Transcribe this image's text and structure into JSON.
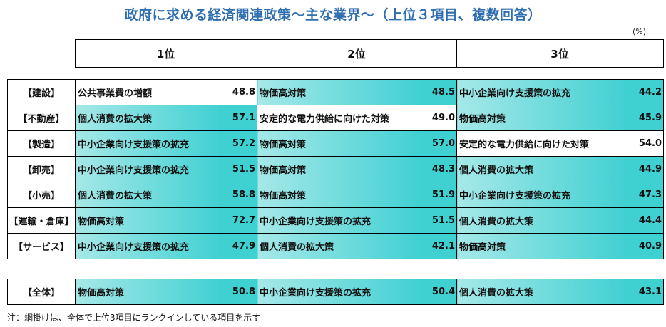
{
  "title": "政府に求める経済関連政策〜主な業界〜（上位３項目、複数回答）",
  "unit": "(%)",
  "headers": [
    "1位",
    "2位",
    "3位"
  ],
  "highlight_color": "#3fd0d2",
  "rows": [
    {
      "cat": "【建設】",
      "r1": {
        "item": "公共事業費の増額",
        "value": "48.8",
        "hl": false
      },
      "r2": {
        "item": "物価高対策",
        "value": "48.5",
        "hl": true
      },
      "r3": {
        "item": "中小企業向け支援策の拡充",
        "value": "44.2",
        "hl": true
      }
    },
    {
      "cat": "【不動産】",
      "r1": {
        "item": "個人消費の拡大策",
        "value": "57.1",
        "hl": true
      },
      "r2": {
        "item": "安定的な電力供給に向けた対策",
        "value": "49.0",
        "hl": false
      },
      "r3": {
        "item": "物価高対策",
        "value": "45.9",
        "hl": true
      }
    },
    {
      "cat": "【製造】",
      "r1": {
        "item": "中小企業向け支援策の拡充",
        "value": "57.2",
        "hl": true
      },
      "r2": {
        "item": "物価高対策",
        "value": "57.0",
        "hl": true
      },
      "r3": {
        "item": "安定的な電力供給に向けた対策",
        "value": "54.0",
        "hl": false
      }
    },
    {
      "cat": "【卸売】",
      "r1": {
        "item": "中小企業向け支援策の拡充",
        "value": "51.5",
        "hl": true
      },
      "r2": {
        "item": "物価高対策",
        "value": "48.3",
        "hl": true
      },
      "r3": {
        "item": "個人消費の拡大策",
        "value": "44.9",
        "hl": true
      }
    },
    {
      "cat": "【小売】",
      "r1": {
        "item": "個人消費の拡大策",
        "value": "58.8",
        "hl": true
      },
      "r2": {
        "item": "物価高対策",
        "value": "51.9",
        "hl": true
      },
      "r3": {
        "item": "中小企業向け支援策の拡充",
        "value": "47.3",
        "hl": true
      }
    },
    {
      "cat": "【運輸・倉庫】",
      "r1": {
        "item": "物価高対策",
        "value": "72.7",
        "hl": true
      },
      "r2": {
        "item": "中小企業向け支援策の拡充",
        "value": "51.5",
        "hl": true
      },
      "r3": {
        "item": "個人消費の拡大策",
        "value": "44.4",
        "hl": true
      }
    },
    {
      "cat": "【サービス】",
      "r1": {
        "item": "中小企業向け支援策の拡充",
        "value": "47.9",
        "hl": true
      },
      "r2": {
        "item": "個人消費の拡大策",
        "value": "42.1",
        "hl": true
      },
      "r3": {
        "item": "物価高対策",
        "value": "40.9",
        "hl": true
      }
    }
  ],
  "total": {
    "cat": "【全体】",
    "r1": {
      "item": "物価高対策",
      "value": "50.8",
      "hl": true
    },
    "r2": {
      "item": "中小企業向け支援策の拡充",
      "value": "50.4",
      "hl": true
    },
    "r3": {
      "item": "個人消費の拡大策",
      "value": "43.1",
      "hl": true
    }
  },
  "note": "注：網掛けは、全体で上位3項目にランクインしている項目を示す"
}
